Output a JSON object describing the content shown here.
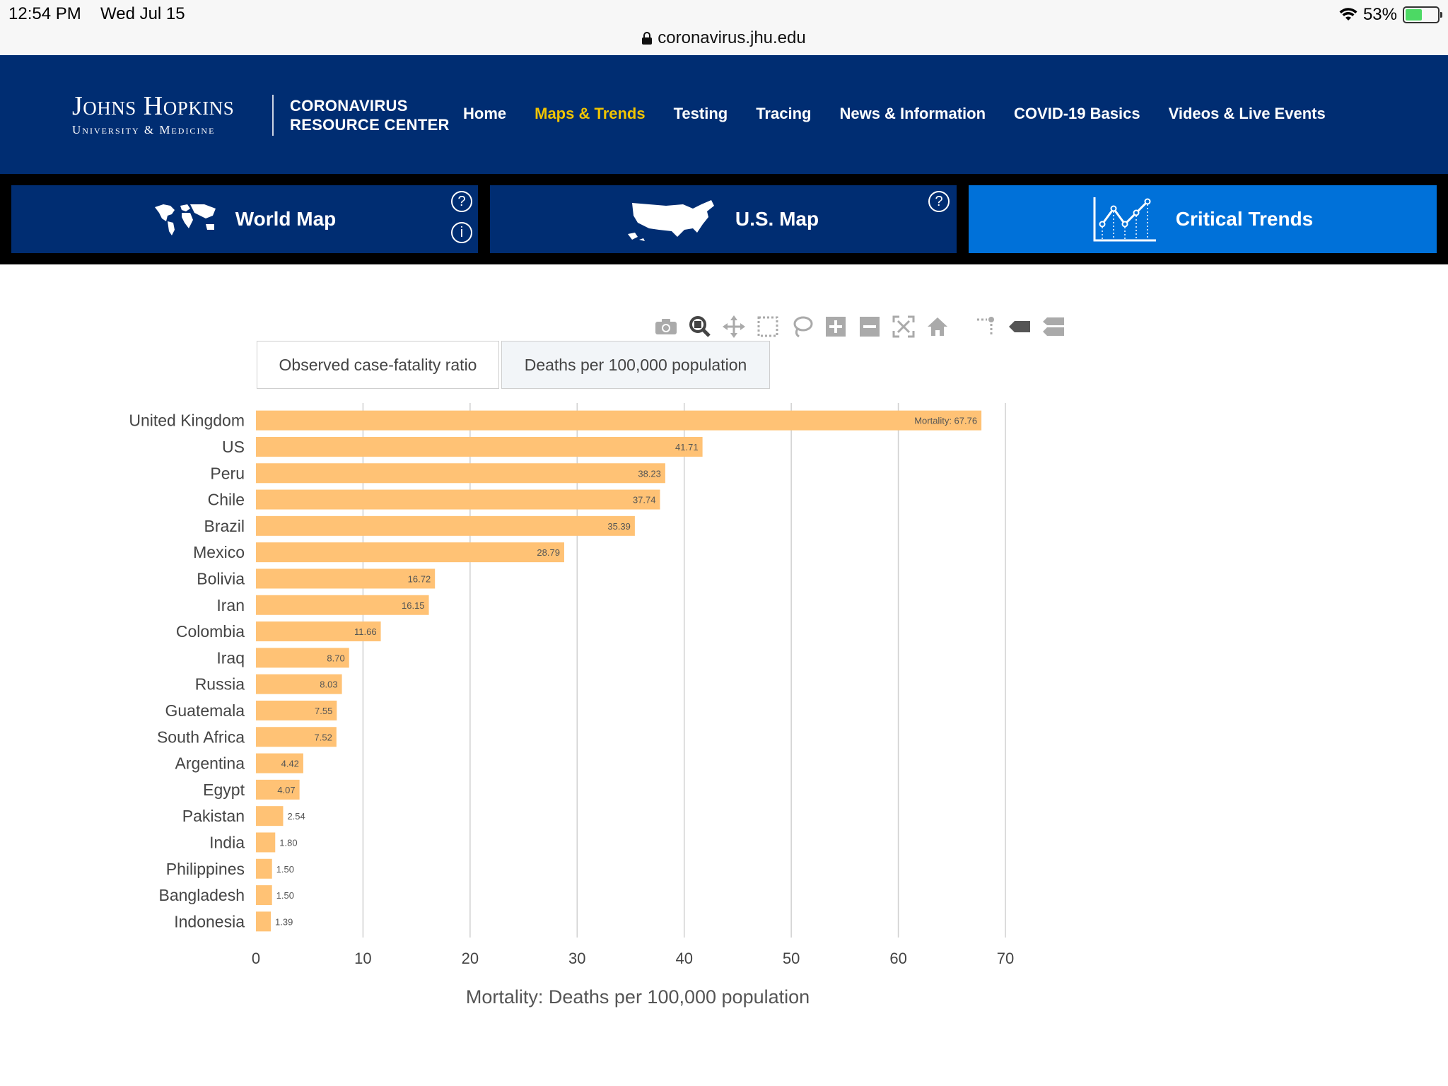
{
  "status_bar": {
    "time": "12:54 PM",
    "date": "Wed Jul 15",
    "battery": "53%",
    "battery_level": 0.53,
    "url": "coronavirus.jhu.edu"
  },
  "header": {
    "logo_line1": "Johns Hopkins",
    "logo_line2": "University & Medicine",
    "center_line1": "CORONAVIRUS",
    "center_line2": "RESOURCE CENTER",
    "nav": [
      {
        "label": "Home"
      },
      {
        "label": "Maps & Trends",
        "active": true
      },
      {
        "label": "Testing"
      },
      {
        "label": "Tracing"
      },
      {
        "label": "News & Information"
      },
      {
        "label": "COVID-19 Basics"
      },
      {
        "label": "Videos & Live Events"
      }
    ]
  },
  "tabs": [
    {
      "label": "World Map",
      "icon": "world-map-icon"
    },
    {
      "label": "U.S. Map",
      "icon": "us-map-icon"
    },
    {
      "label": "Critical Trends",
      "icon": "trend-chart-icon",
      "active": true
    }
  ],
  "toggle_buttons": [
    {
      "label": "Observed case-fatality ratio"
    },
    {
      "label": "Deaths per 100,000 population",
      "selected": true
    }
  ],
  "modebar_icons": [
    "camera-icon",
    "zoom-icon",
    "pan-icon",
    "box-select-icon",
    "lasso-select-icon",
    "zoom-in-icon",
    "zoom-out-icon",
    "autoscale-icon",
    "reset-axes-icon",
    "spike-lines-icon",
    "hover-closest-icon",
    "hover-compare-icon"
  ],
  "chart_data": {
    "type": "bar",
    "orientation": "horizontal",
    "categories": [
      "United Kingdom",
      "US",
      "Peru",
      "Chile",
      "Brazil",
      "Mexico",
      "Bolivia",
      "Iran",
      "Colombia",
      "Iraq",
      "Russia",
      "Guatemala",
      "South Africa",
      "Argentina",
      "Egypt",
      "Pakistan",
      "India",
      "Philippines",
      "Bangladesh",
      "Indonesia"
    ],
    "values": [
      67.76,
      41.71,
      38.23,
      37.74,
      35.39,
      28.79,
      16.72,
      16.15,
      11.66,
      8.7,
      8.03,
      7.55,
      7.52,
      4.42,
      4.07,
      2.54,
      1.8,
      1.5,
      1.5,
      1.39
    ],
    "value_labels": [
      "Mortality: 67.76",
      "41.71",
      "38.23",
      "37.74",
      "35.39",
      "28.79",
      "16.72",
      "16.15",
      "11.66",
      "8.70",
      "8.03",
      "7.55",
      "7.52",
      "4.42",
      "4.07",
      "2.54",
      "1.80",
      "1.50",
      "1.50",
      "1.39"
    ],
    "xlabel": "Mortality: Deaths per 100,000 population",
    "ylabel": "",
    "xlim": [
      0,
      70
    ],
    "x_ticks": [
      0,
      10,
      20,
      30,
      40,
      50,
      60,
      70
    ],
    "grid": true,
    "bar_color": "#ffc275"
  }
}
